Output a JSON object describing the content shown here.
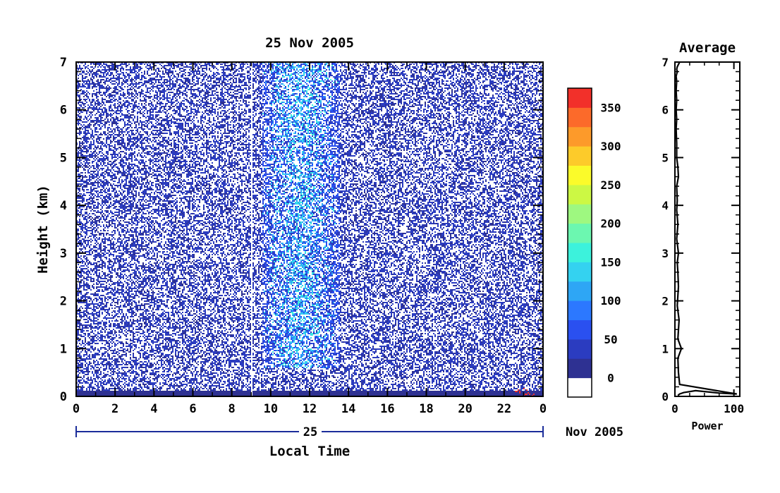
{
  "chart_data": [
    {
      "type": "heatmap",
      "title": "25 Nov 2005",
      "xlabel": "Local Time",
      "ylabel": "Height (km)",
      "xlim": [
        0,
        24
      ],
      "ylim": [
        0,
        7
      ],
      "x_ticks": [
        "0",
        "2",
        "4",
        "6",
        "8",
        "10",
        "12",
        "14",
        "16",
        "18",
        "20",
        "22",
        "0"
      ],
      "y_ticks": [
        "0",
        "1",
        "2",
        "3",
        "4",
        "5",
        "6",
        "7"
      ],
      "date_axis": {
        "day_label": "25",
        "month_label": "Nov 2005"
      },
      "colorbar": {
        "ticks": [
          "0",
          "50",
          "100",
          "150",
          "200",
          "250",
          "300",
          "350"
        ],
        "range": [
          -25,
          375
        ],
        "colors": [
          "#ffffff",
          "#2e3192",
          "#2b3cc0",
          "#2a50f0",
          "#2c78ff",
          "#2ea6f5",
          "#34d2f0",
          "#3cf2dc",
          "#6cf7b0",
          "#9ef880",
          "#ccf844",
          "#fbfb2a",
          "#fdcb2a",
          "#fd9a2a",
          "#fc6a2a",
          "#f2302a"
        ]
      },
      "features": [
        {
          "name": "surface clutter band",
          "x_range": [
            0,
            24
          ],
          "y_range": [
            0,
            0.12
          ],
          "value": 10
        },
        {
          "name": "enhanced echo column",
          "x_range": [
            9.5,
            13.5
          ],
          "y_range": [
            0.6,
            7
          ],
          "value": 140
        },
        {
          "name": "dropout gap",
          "x": 9.0
        },
        {
          "name": "strong echo near 23h",
          "x_range": [
            22.5,
            23.5
          ],
          "y_range": [
            0,
            0.2
          ],
          "value": 360
        }
      ]
    },
    {
      "type": "line",
      "title": "Average",
      "xlabel": "Power",
      "ylabel": "",
      "xlim": [
        0,
        110
      ],
      "ylim": [
        0,
        7
      ],
      "x_ticks": [
        "0",
        "100"
      ],
      "y_ticks": [
        "0",
        "1",
        "2",
        "3",
        "4",
        "5",
        "6",
        "7"
      ],
      "series": [
        {
          "x": [
            5,
            8,
            15,
            35,
            75,
            105,
            8,
            6,
            5,
            11,
            5,
            7,
            4,
            6,
            5,
            4,
            6,
            3,
            5,
            3,
            4,
            3,
            6,
            5,
            3,
            3,
            2,
            3,
            2,
            3,
            2,
            3,
            2,
            4,
            3,
            4,
            6,
            8
          ],
          "y": [
            0.02,
            0.05,
            0.08,
            0.12,
            0.07,
            0.05,
            0.25,
            0.5,
            0.8,
            1.0,
            1.2,
            1.6,
            1.9,
            2.3,
            2.6,
            2.8,
            3.0,
            3.3,
            3.6,
            3.9,
            4.1,
            4.4,
            4.6,
            4.8,
            5.0,
            5.3,
            5.6,
            5.8,
            6.0,
            6.2,
            6.4,
            6.6,
            6.7,
            6.8,
            6.85,
            6.9,
            6.95,
            7.0
          ]
        }
      ]
    }
  ]
}
